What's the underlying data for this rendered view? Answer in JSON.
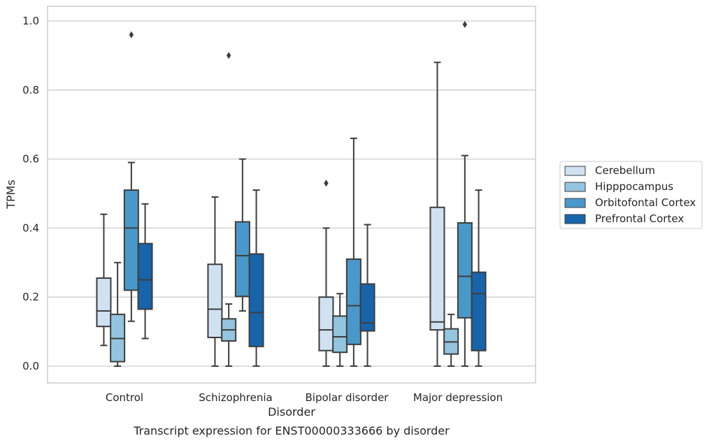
{
  "chart_data": {
    "type": "box",
    "caption": "Transcript expression for ENST00000333666 by disorder",
    "xlabel": "Disorder",
    "ylabel": "TPMs",
    "ylim": [
      -0.048,
      1.04
    ],
    "yticks": [
      0.0,
      0.2,
      0.4,
      0.6,
      0.8,
      1.0
    ],
    "ytick_labels": [
      "0.0",
      "0.2",
      "0.4",
      "0.6",
      "0.8",
      "1.0"
    ],
    "grid": "horizontal",
    "legend_position": "right",
    "categories": [
      "Control",
      "Schizophrenia",
      "Bipolar disorder",
      "Major depression"
    ],
    "series": [
      {
        "name": "Cerebellum",
        "color": "#d0e1f2",
        "boxes": [
          {
            "whislo": 0.06,
            "q1": 0.115,
            "med": 0.16,
            "q3": 0.255,
            "whishi": 0.44,
            "fliers": []
          },
          {
            "whislo": 0.0,
            "q1": 0.083,
            "med": 0.165,
            "q3": 0.295,
            "whishi": 0.49,
            "fliers": []
          },
          {
            "whislo": 0.0,
            "q1": 0.045,
            "med": 0.105,
            "q3": 0.2,
            "whishi": 0.4,
            "fliers": [
              0.53
            ]
          },
          {
            "whislo": 0.0,
            "q1": 0.105,
            "med": 0.128,
            "q3": 0.46,
            "whishi": 0.88,
            "fliers": []
          }
        ]
      },
      {
        "name": "Hipppocampus",
        "color": "#94c4df",
        "boxes": [
          {
            "whislo": 0.0,
            "q1": 0.013,
            "med": 0.08,
            "q3": 0.15,
            "whishi": 0.3,
            "fliers": []
          },
          {
            "whislo": 0.0,
            "q1": 0.073,
            "med": 0.105,
            "q3": 0.137,
            "whishi": 0.18,
            "fliers": [
              0.9
            ]
          },
          {
            "whislo": 0.0,
            "q1": 0.04,
            "med": 0.085,
            "q3": 0.145,
            "whishi": 0.21,
            "fliers": []
          },
          {
            "whislo": 0.0,
            "q1": 0.035,
            "med": 0.07,
            "q3": 0.108,
            "whishi": 0.15,
            "fliers": []
          }
        ]
      },
      {
        "name": "Orbitofontal Cortex",
        "color": "#4a98c9",
        "boxes": [
          {
            "whislo": 0.13,
            "q1": 0.22,
            "med": 0.4,
            "q3": 0.51,
            "whishi": 0.59,
            "fliers": [
              0.96
            ]
          },
          {
            "whislo": 0.16,
            "q1": 0.202,
            "med": 0.32,
            "q3": 0.418,
            "whishi": 0.6,
            "fliers": []
          },
          {
            "whislo": 0.0,
            "q1": 0.063,
            "med": 0.175,
            "q3": 0.31,
            "whishi": 0.66,
            "fliers": []
          },
          {
            "whislo": 0.0,
            "q1": 0.14,
            "med": 0.26,
            "q3": 0.415,
            "whishi": 0.61,
            "fliers": [
              0.99
            ]
          }
        ]
      },
      {
        "name": "Prefrontal Cortex",
        "color": "#1764ab",
        "boxes": [
          {
            "whislo": 0.08,
            "q1": 0.165,
            "med": 0.25,
            "q3": 0.355,
            "whishi": 0.47,
            "fliers": []
          },
          {
            "whislo": 0.0,
            "q1": 0.057,
            "med": 0.155,
            "q3": 0.325,
            "whishi": 0.51,
            "fliers": []
          },
          {
            "whislo": 0.0,
            "q1": 0.102,
            "med": 0.125,
            "q3": 0.238,
            "whishi": 0.41,
            "fliers": []
          },
          {
            "whislo": 0.0,
            "q1": 0.045,
            "med": 0.21,
            "q3": 0.272,
            "whishi": 0.51,
            "fliers": []
          }
        ]
      }
    ]
  }
}
